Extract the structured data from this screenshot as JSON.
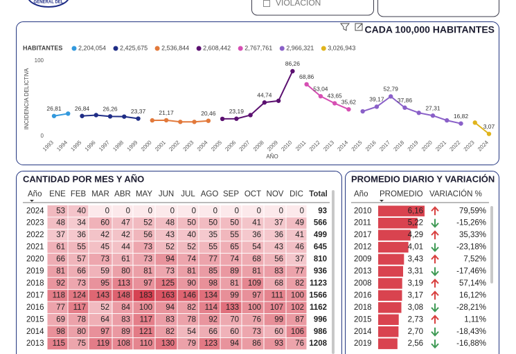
{
  "logo_text": "GENERAL DEL",
  "slicer_option": "VIOLACIÓN",
  "chart_data": {
    "type": "line",
    "title": "CADA 100,000 HABITANTES",
    "legend_title": "HABITANTES",
    "ylabel": "INCIDENCIA DELICTIVA",
    "xlabel": "AÑO",
    "xlim": [
      1993,
      2024
    ],
    "xticks": [
      1993,
      1994,
      1995,
      1996,
      1997,
      1998,
      1999,
      2000,
      2001,
      2002,
      2003,
      2004,
      2005,
      2006,
      2007,
      2008,
      2009,
      2010,
      2011,
      2012,
      2013,
      2014,
      2015,
      2016,
      2017,
      2018,
      2019,
      2020,
      2021,
      2022,
      2023,
      2024
    ],
    "ylim": [
      0,
      100
    ],
    "yticks": [
      0,
      100
    ],
    "series": [
      {
        "name": "2,204,054",
        "color": "#3399dd",
        "x": [
          1993,
          1994
        ],
        "values": [
          26.81,
          30
        ],
        "value_labels": [
          "26,81",
          null
        ]
      },
      {
        "name": "2,425,675",
        "color": "#1f2d86",
        "x": [
          1995,
          1996,
          1997,
          1998,
          1999
        ],
        "values": [
          26.84,
          28,
          26.26,
          26,
          23.37
        ],
        "value_labels": [
          "26,84",
          null,
          "26,26",
          null,
          "23,37"
        ]
      },
      {
        "name": "2,536,844",
        "color": "#e2793b",
        "x": [
          2000,
          2001,
          2002,
          2003,
          2004
        ],
        "values": [
          21,
          21.17,
          19,
          19,
          20.46
        ],
        "value_labels": [
          null,
          "21,17",
          null,
          null,
          "20,46"
        ]
      },
      {
        "name": "2,608,442",
        "color": "#5b1070",
        "x": [
          2005,
          2006,
          2007,
          2008,
          2009,
          2010
        ],
        "values": [
          23,
          23.19,
          28,
          44.74,
          47,
          86.26
        ],
        "value_labels": [
          null,
          "23,19",
          null,
          "44,74",
          null,
          "86,26"
        ]
      },
      {
        "name": "2,767,761",
        "color": "#d64fb3",
        "x": [
          2011,
          2012,
          2013,
          2014
        ],
        "values": [
          68.86,
          53.04,
          43.65,
          35.62
        ],
        "value_labels": [
          "68,86",
          "53,04",
          "43,65",
          "35,62"
        ]
      },
      {
        "name": "2,966,321",
        "color": "#8a60c8",
        "x": [
          2015,
          2016,
          2017,
          2018,
          2019,
          2020,
          2021,
          2022
        ],
        "values": [
          33,
          39.17,
          52.79,
          37.86,
          31,
          27.31,
          21,
          16.82
        ],
        "value_labels": [
          null,
          "39,17",
          "52,79",
          "37,86",
          null,
          "27,31",
          null,
          "16,82"
        ]
      },
      {
        "name": "3,026,943",
        "color": "#e0b41c",
        "x": [
          2023,
          2024
        ],
        "values": [
          18,
          3.07
        ],
        "value_labels": [
          null,
          "3,07"
        ]
      }
    ]
  },
  "month_table": {
    "title": "CANTIDAD POR MES Y AÑO",
    "headers": [
      "Año",
      "ENE",
      "FEB",
      "MAR",
      "ABR",
      "MAY",
      "JUN",
      "JUL",
      "AGO",
      "SEP",
      "OCT",
      "NOV",
      "DIC",
      "Total"
    ],
    "rows": [
      [
        "2024",
        53,
        40,
        0,
        0,
        0,
        0,
        0,
        0,
        0,
        0,
        0,
        0,
        93
      ],
      [
        "2023",
        48,
        34,
        60,
        47,
        52,
        48,
        50,
        50,
        50,
        41,
        37,
        49,
        566
      ],
      [
        "2022",
        37,
        36,
        42,
        42,
        56,
        43,
        40,
        35,
        55,
        36,
        36,
        41,
        499
      ],
      [
        "2021",
        61,
        55,
        45,
        44,
        73,
        52,
        52,
        55,
        65,
        54,
        43,
        46,
        645
      ],
      [
        "2020",
        66,
        57,
        73,
        61,
        73,
        94,
        74,
        77,
        74,
        68,
        56,
        37,
        810
      ],
      [
        "2019",
        81,
        66,
        59,
        80,
        81,
        73,
        81,
        85,
        89,
        81,
        83,
        77,
        936
      ],
      [
        "2018",
        92,
        73,
        95,
        113,
        97,
        125,
        90,
        98,
        81,
        109,
        68,
        82,
        1123
      ],
      [
        "2017",
        118,
        124,
        143,
        148,
        183,
        163,
        146,
        134,
        99,
        97,
        111,
        100,
        1566
      ],
      [
        "2016",
        77,
        117,
        52,
        84,
        100,
        94,
        82,
        114,
        133,
        100,
        107,
        102,
        1162
      ],
      [
        "2015",
        69,
        78,
        64,
        83,
        117,
        83,
        78,
        92,
        70,
        76,
        99,
        87,
        996
      ],
      [
        "2014",
        98,
        80,
        97,
        89,
        121,
        82,
        54,
        66,
        60,
        73,
        60,
        106,
        986
      ],
      [
        "2013",
        115,
        75,
        119,
        108,
        110,
        130,
        79,
        123,
        94,
        86,
        93,
        76,
        1208
      ]
    ]
  },
  "average_table": {
    "title": "PROMEDIO DIARIO Y VARIACIÓN",
    "headers": [
      "Año",
      "PROMEDIO",
      "VARIACIÓN %"
    ],
    "rows": [
      {
        "year": "2010",
        "average": 6.16,
        "average_label": "6,16",
        "variation": "79,59%"
      },
      {
        "year": "2011",
        "average": 5.22,
        "average_label": "5,22",
        "variation": "-15,26%"
      },
      {
        "year": "2017",
        "average": 4.29,
        "average_label": "4,29",
        "variation": "35,33%"
      },
      {
        "year": "2012",
        "average": 4.01,
        "average_label": "4,01",
        "variation": "-23,18%"
      },
      {
        "year": "2009",
        "average": 3.43,
        "average_label": "3,43",
        "variation": "7,52%"
      },
      {
        "year": "2013",
        "average": 3.31,
        "average_label": "3,31",
        "variation": "-17,46%"
      },
      {
        "year": "2008",
        "average": 3.19,
        "average_label": "3,19",
        "variation": "57,14%"
      },
      {
        "year": "2016",
        "average": 3.17,
        "average_label": "3,17",
        "variation": "16,12%"
      },
      {
        "year": "2018",
        "average": 3.08,
        "average_label": "3,08",
        "variation": "-28,21%"
      },
      {
        "year": "2015",
        "average": 2.73,
        "average_label": "2,73",
        "variation": "1,11%"
      },
      {
        "year": "2014",
        "average": 2.7,
        "average_label": "2,70",
        "variation": "-18,43%"
      },
      {
        "year": "2019",
        "average": 2.56,
        "average_label": "2,56",
        "variation": "-16,88%"
      }
    ]
  }
}
